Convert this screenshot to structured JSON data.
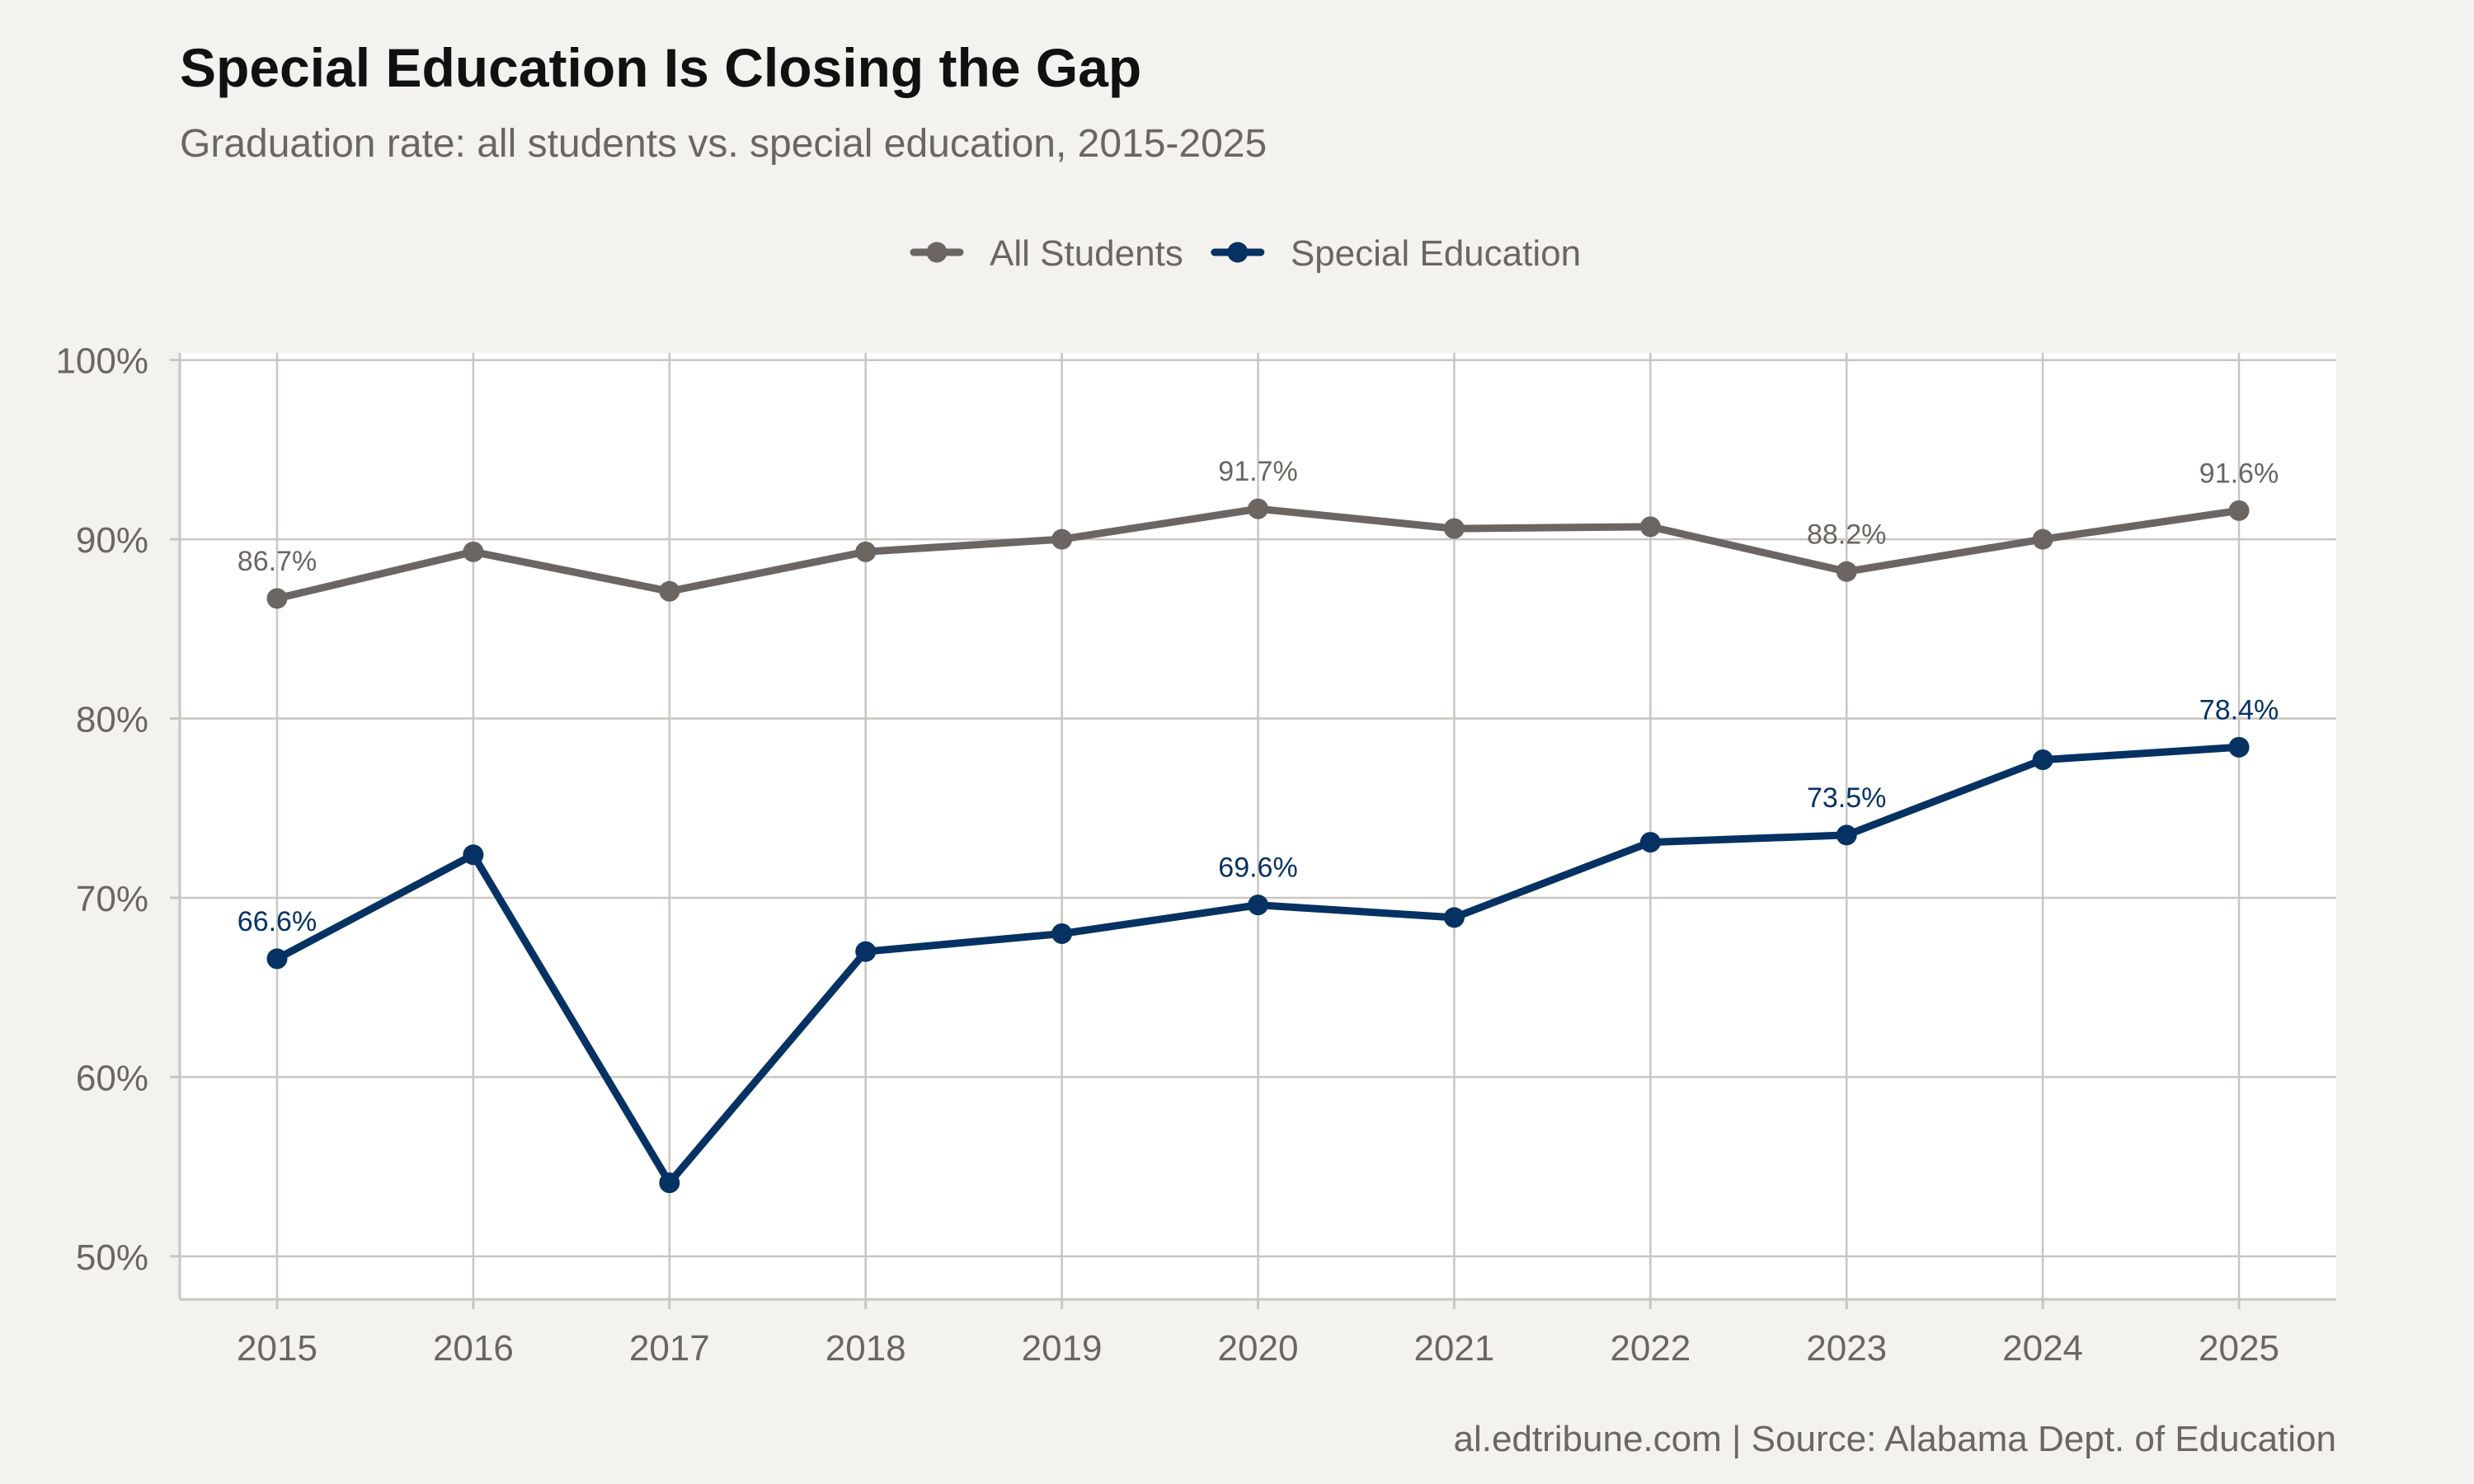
{
  "chart_data": {
    "type": "line",
    "title": "Special Education Is Closing the Gap",
    "subtitle": "Graduation rate: all students vs. special education, 2015-2025",
    "caption": "al.edtribune.com | Source: Alabama Dept. of Education",
    "x": [
      "2015",
      "2016",
      "2017",
      "2018",
      "2019",
      "2020",
      "2021",
      "2022",
      "2023",
      "2024",
      "2025"
    ],
    "ylim": [
      47.6,
      100.4
    ],
    "y_ticks": [
      {
        "value": 50,
        "label": "50%"
      },
      {
        "value": 60,
        "label": "60%"
      },
      {
        "value": 70,
        "label": "70%"
      },
      {
        "value": 80,
        "label": "80%"
      },
      {
        "value": 90,
        "label": "90%"
      },
      {
        "value": 100,
        "label": "100%"
      }
    ],
    "grid": true,
    "legend_position": "top-center",
    "series": [
      {
        "name": "All Students",
        "color": "#6b6661",
        "values": [
          86.7,
          89.3,
          87.1,
          89.3,
          90.0,
          91.7,
          90.6,
          90.7,
          88.2,
          90.0,
          91.6
        ],
        "labels": [
          {
            "index": 0,
            "text": "86.7%"
          },
          {
            "index": 5,
            "text": "91.7%"
          },
          {
            "index": 8,
            "text": "88.2%"
          },
          {
            "index": 10,
            "text": "91.6%"
          }
        ]
      },
      {
        "name": "Special Education",
        "color": "#063263",
        "values": [
          66.6,
          72.4,
          54.1,
          67.0,
          68.0,
          69.6,
          68.9,
          73.1,
          73.5,
          77.7,
          78.4
        ],
        "labels": [
          {
            "index": 0,
            "text": "66.6%"
          },
          {
            "index": 5,
            "text": "69.6%"
          },
          {
            "index": 8,
            "text": "73.5%"
          },
          {
            "index": 10,
            "text": "78.4%"
          }
        ]
      }
    ]
  }
}
